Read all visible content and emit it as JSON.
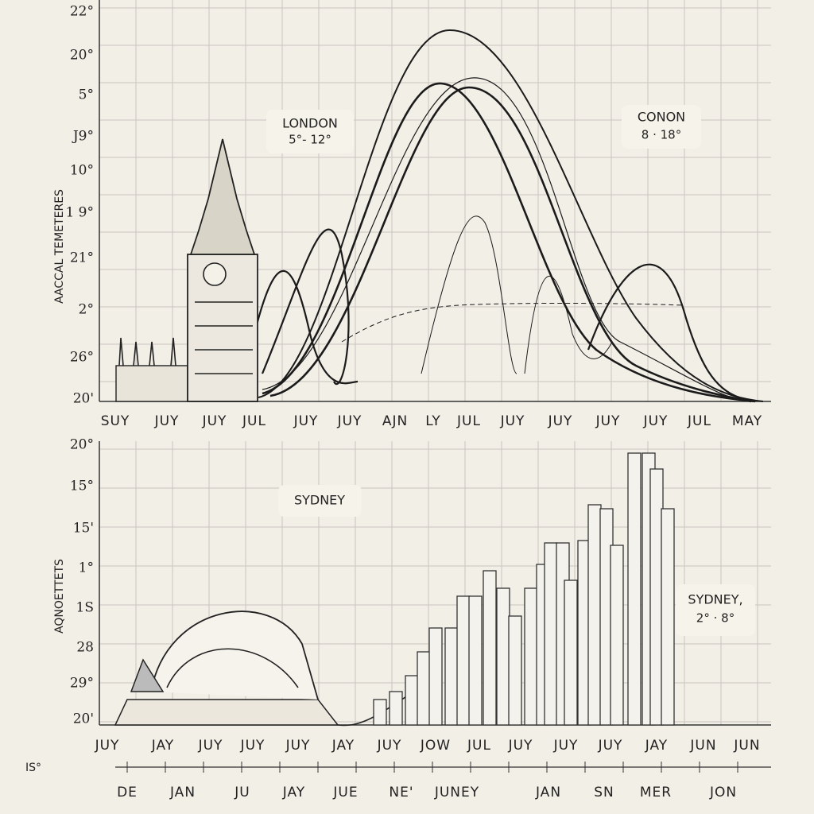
{
  "top": {
    "y_axis_title": "AACCAL TEMETERES",
    "y_labels": [
      "22°",
      "20°",
      "5°",
      "J9°",
      "10°",
      "1 9°",
      "21°",
      "2°",
      "26°",
      "20'"
    ],
    "x_labels": [
      "SUY",
      "JUY",
      "JUY",
      "JUL",
      "JUY",
      "JUY",
      "AJN",
      "LY",
      "JUL",
      "JUY",
      "JUY",
      "JUY",
      "JUY",
      "JUL",
      "MAY"
    ],
    "annotations": [
      {
        "title": "LONDON",
        "text": "5°- 12°"
      },
      {
        "title": "CONON",
        "text": "8 · 18°"
      }
    ]
  },
  "bottom": {
    "y_axis_title": "AQNOETTETS",
    "y_labels": [
      "20°",
      "15°",
      "15'",
      "1°",
      "1S",
      "28",
      "29°",
      "20'"
    ],
    "x_labels": [
      "JUY",
      "JAY",
      "JUY",
      "JUY",
      "JUY",
      "JAY",
      "JUY",
      "JOW",
      "JUL",
      "JUY",
      "JUY",
      "JUY",
      "JAY",
      "JUN",
      "JUN"
    ],
    "annotations": [
      {
        "title": "SYDNEY"
      },
      {
        "title": "SYDNEY,",
        "text": "2° · 8°"
      }
    ],
    "lower_axis_title": "IS°",
    "lower_axis_labels": [
      "DE",
      "JAN",
      "JU",
      "JAY",
      "JUE",
      "NE'",
      "JUNEY",
      "JAN",
      "SN",
      "MER",
      "JON"
    ]
  }
}
